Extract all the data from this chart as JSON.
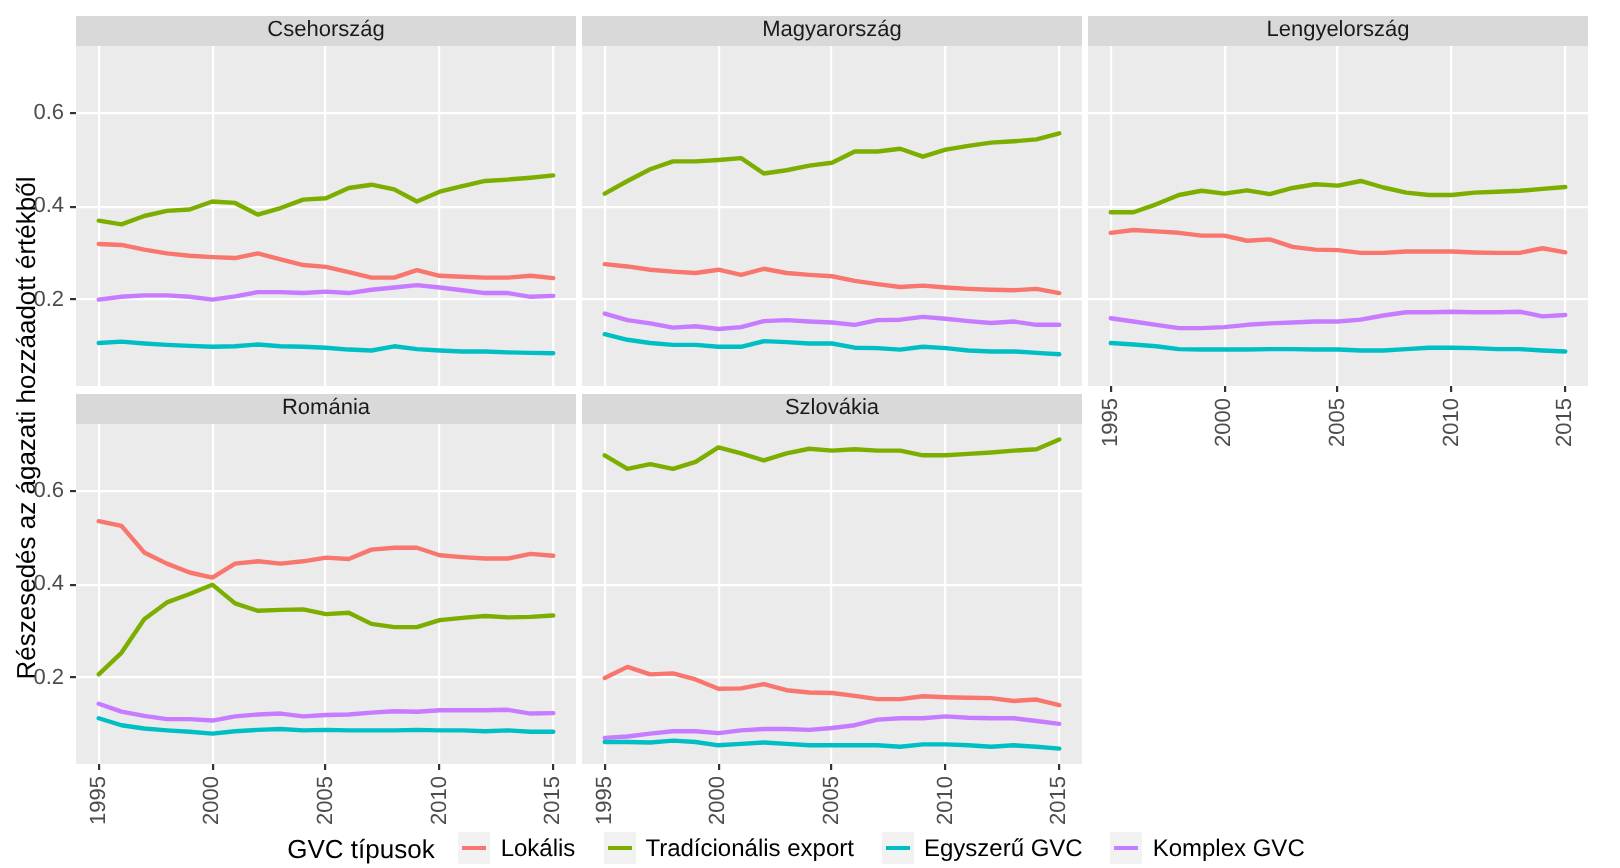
{
  "chart_data": [
    {
      "type": "line",
      "title": "Csehország",
      "ylabel": "Részesedés az ágazati hozzáadott értékből",
      "tick_labels": "y",
      "marker": "none",
      "grid": true,
      "legend": "bottom",
      "legend_title": "GVC típusok",
      "x": [
        1995,
        1996,
        1997,
        1998,
        1999,
        2000,
        2001,
        2002,
        2003,
        2004,
        2005,
        2006,
        2007,
        2008,
        2009,
        2010,
        2011,
        2012,
        2013,
        2014,
        2015
      ],
      "xlim": [
        1994,
        2016
      ],
      "xticks": [
        1995,
        2000,
        2005,
        2010,
        2015
      ],
      "ylim": [
        0.015,
        0.743
      ],
      "yticks": [
        0.2,
        0.4,
        0.6
      ],
      "series": [
        {
          "name": "Lokális",
          "color": "#f8766d",
          "values": [
            0.319,
            0.317,
            0.307,
            0.299,
            0.294,
            0.291,
            0.289,
            0.299,
            0.286,
            0.274,
            0.27,
            0.259,
            0.247,
            0.247,
            0.263,
            0.251,
            0.249,
            0.247,
            0.247,
            0.251,
            0.246
          ]
        },
        {
          "name": "Tradícionális export",
          "color": "#7cae00",
          "values": [
            0.369,
            0.361,
            0.379,
            0.39,
            0.393,
            0.41,
            0.407,
            0.382,
            0.396,
            0.414,
            0.417,
            0.439,
            0.446,
            0.436,
            0.41,
            0.431,
            0.443,
            0.454,
            0.457,
            0.461,
            0.466
          ]
        },
        {
          "name": "Egyszerű GVC",
          "color": "#00bfc4",
          "values": [
            0.107,
            0.11,
            0.106,
            0.103,
            0.101,
            0.099,
            0.1,
            0.104,
            0.1,
            0.099,
            0.097,
            0.093,
            0.091,
            0.1,
            0.094,
            0.091,
            0.089,
            0.089,
            0.087,
            0.086,
            0.085
          ]
        },
        {
          "name": "Komplex GVC",
          "color": "#c77cff",
          "values": [
            0.2,
            0.206,
            0.209,
            0.209,
            0.206,
            0.2,
            0.207,
            0.216,
            0.216,
            0.214,
            0.217,
            0.214,
            0.221,
            0.226,
            0.231,
            0.226,
            0.22,
            0.214,
            0.214,
            0.206,
            0.208
          ]
        }
      ]
    },
    {
      "type": "line",
      "title": "Magyarország",
      "tick_labels": false,
      "marker": "none",
      "grid": true,
      "x": [
        1995,
        1996,
        1997,
        1998,
        1999,
        2000,
        2001,
        2002,
        2003,
        2004,
        2005,
        2006,
        2007,
        2008,
        2009,
        2010,
        2011,
        2012,
        2013,
        2014,
        2015
      ],
      "xlim": [
        1994,
        2016
      ],
      "xticks": [
        1995,
        2000,
        2005,
        2010,
        2015
      ],
      "ylim": [
        0.015,
        0.743
      ],
      "yticks": [
        0.2,
        0.4,
        0.6
      ],
      "series": [
        {
          "color": "#f8766d",
          "values": [
            0.276,
            0.271,
            0.264,
            0.26,
            0.257,
            0.264,
            0.253,
            0.266,
            0.257,
            0.253,
            0.25,
            0.24,
            0.233,
            0.227,
            0.23,
            0.226,
            0.223,
            0.221,
            0.22,
            0.223,
            0.214
          ]
        },
        {
          "color": "#7cae00",
          "values": [
            0.427,
            0.454,
            0.479,
            0.496,
            0.496,
            0.499,
            0.503,
            0.47,
            0.477,
            0.487,
            0.493,
            0.517,
            0.517,
            0.523,
            0.506,
            0.521,
            0.529,
            0.536,
            0.539,
            0.543,
            0.556
          ]
        },
        {
          "color": "#00bfc4",
          "values": [
            0.126,
            0.114,
            0.107,
            0.103,
            0.103,
            0.099,
            0.099,
            0.111,
            0.109,
            0.106,
            0.106,
            0.097,
            0.096,
            0.093,
            0.099,
            0.096,
            0.091,
            0.089,
            0.089,
            0.086,
            0.083
          ]
        },
        {
          "color": "#c77cff",
          "values": [
            0.17,
            0.156,
            0.149,
            0.14,
            0.143,
            0.137,
            0.141,
            0.154,
            0.156,
            0.153,
            0.151,
            0.146,
            0.156,
            0.157,
            0.163,
            0.159,
            0.154,
            0.15,
            0.153,
            0.146,
            0.146
          ]
        }
      ]
    },
    {
      "type": "line",
      "title": "Lengyelország",
      "tick_labels": "x",
      "marker": "none",
      "grid": true,
      "x": [
        1995,
        1996,
        1997,
        1998,
        1999,
        2000,
        2001,
        2002,
        2003,
        2004,
        2005,
        2006,
        2007,
        2008,
        2009,
        2010,
        2011,
        2012,
        2013,
        2014,
        2015
      ],
      "xlim": [
        1994,
        2016
      ],
      "xticks": [
        1995,
        2000,
        2005,
        2010,
        2015
      ],
      "ylim": [
        0.015,
        0.743
      ],
      "yticks": [
        0.2,
        0.4,
        0.6
      ],
      "series": [
        {
          "color": "#f8766d",
          "values": [
            0.343,
            0.349,
            0.346,
            0.343,
            0.337,
            0.337,
            0.326,
            0.329,
            0.313,
            0.307,
            0.306,
            0.3,
            0.3,
            0.303,
            0.303,
            0.303,
            0.301,
            0.3,
            0.3,
            0.31,
            0.301
          ]
        },
        {
          "color": "#7cae00",
          "values": [
            0.387,
            0.387,
            0.404,
            0.424,
            0.433,
            0.427,
            0.434,
            0.426,
            0.439,
            0.447,
            0.444,
            0.454,
            0.44,
            0.429,
            0.424,
            0.424,
            0.429,
            0.431,
            0.433,
            0.437,
            0.441
          ]
        },
        {
          "color": "#00bfc4",
          "values": [
            0.107,
            0.104,
            0.1,
            0.094,
            0.093,
            0.093,
            0.093,
            0.094,
            0.094,
            0.093,
            0.093,
            0.091,
            0.091,
            0.094,
            0.097,
            0.097,
            0.096,
            0.094,
            0.094,
            0.091,
            0.089
          ]
        },
        {
          "color": "#c77cff",
          "values": [
            0.16,
            0.153,
            0.146,
            0.139,
            0.139,
            0.141,
            0.146,
            0.149,
            0.151,
            0.153,
            0.153,
            0.157,
            0.166,
            0.173,
            0.173,
            0.174,
            0.173,
            0.173,
            0.174,
            0.164,
            0.167
          ]
        }
      ]
    },
    {
      "type": "line",
      "title": "Románia",
      "marker": "none",
      "grid": true,
      "x": [
        1995,
        1996,
        1997,
        1998,
        1999,
        2000,
        2001,
        2002,
        2003,
        2004,
        2005,
        2006,
        2007,
        2008,
        2009,
        2010,
        2011,
        2012,
        2013,
        2014,
        2015
      ],
      "xlim": [
        1994,
        2016
      ],
      "xticks": [
        1995,
        2000,
        2005,
        2010,
        2015
      ],
      "ylim": [
        0.015,
        0.743
      ],
      "yticks": [
        0.2,
        0.4,
        0.6
      ],
      "series": [
        {
          "color": "#f8766d",
          "values": [
            0.535,
            0.525,
            0.468,
            0.444,
            0.425,
            0.414,
            0.444,
            0.449,
            0.444,
            0.449,
            0.457,
            0.454,
            0.474,
            0.478,
            0.478,
            0.462,
            0.458,
            0.455,
            0.455,
            0.465,
            0.461
          ]
        },
        {
          "color": "#7cae00",
          "values": [
            0.207,
            0.253,
            0.325,
            0.361,
            0.379,
            0.399,
            0.359,
            0.343,
            0.345,
            0.346,
            0.336,
            0.339,
            0.315,
            0.308,
            0.308,
            0.323,
            0.328,
            0.332,
            0.329,
            0.33,
            0.333
          ]
        },
        {
          "color": "#00bfc4",
          "values": [
            0.113,
            0.098,
            0.091,
            0.087,
            0.084,
            0.08,
            0.085,
            0.088,
            0.09,
            0.087,
            0.088,
            0.087,
            0.087,
            0.087,
            0.088,
            0.087,
            0.087,
            0.085,
            0.087,
            0.084,
            0.084
          ]
        },
        {
          "color": "#c77cff",
          "values": [
            0.144,
            0.127,
            0.118,
            0.111,
            0.111,
            0.108,
            0.117,
            0.121,
            0.123,
            0.117,
            0.12,
            0.121,
            0.125,
            0.128,
            0.127,
            0.13,
            0.13,
            0.13,
            0.131,
            0.123,
            0.124
          ]
        }
      ]
    },
    {
      "type": "line",
      "title": "Szlovákia",
      "tick_labels": "x",
      "marker": "none",
      "grid": true,
      "x": [
        1995,
        1996,
        1997,
        1998,
        1999,
        2000,
        2001,
        2002,
        2003,
        2004,
        2005,
        2006,
        2007,
        2008,
        2009,
        2010,
        2011,
        2012,
        2013,
        2014,
        2015
      ],
      "xlim": [
        1994,
        2016
      ],
      "xticks": [
        1995,
        2000,
        2005,
        2010,
        2015
      ],
      "ylim": [
        0.015,
        0.743
      ],
      "yticks": [
        0.2,
        0.4,
        0.6
      ],
      "series": [
        {
          "color": "#f8766d",
          "values": [
            0.199,
            0.223,
            0.207,
            0.209,
            0.196,
            0.176,
            0.177,
            0.186,
            0.173,
            0.168,
            0.167,
            0.161,
            0.154,
            0.154,
            0.16,
            0.158,
            0.157,
            0.156,
            0.15,
            0.153,
            0.141
          ]
        },
        {
          "color": "#7cae00",
          "values": [
            0.676,
            0.647,
            0.657,
            0.647,
            0.662,
            0.693,
            0.68,
            0.665,
            0.68,
            0.69,
            0.686,
            0.689,
            0.686,
            0.686,
            0.676,
            0.676,
            0.679,
            0.682,
            0.686,
            0.689,
            0.71
          ]
        },
        {
          "color": "#00bfc4",
          "values": [
            0.062,
            0.062,
            0.061,
            0.065,
            0.062,
            0.055,
            0.058,
            0.061,
            0.058,
            0.055,
            0.055,
            0.055,
            0.055,
            0.052,
            0.057,
            0.057,
            0.055,
            0.052,
            0.055,
            0.052,
            0.048
          ]
        },
        {
          "color": "#c77cff",
          "values": [
            0.071,
            0.074,
            0.08,
            0.085,
            0.085,
            0.081,
            0.087,
            0.09,
            0.09,
            0.088,
            0.092,
            0.098,
            0.11,
            0.113,
            0.113,
            0.117,
            0.114,
            0.113,
            0.113,
            0.107,
            0.101
          ]
        }
      ]
    }
  ]
}
